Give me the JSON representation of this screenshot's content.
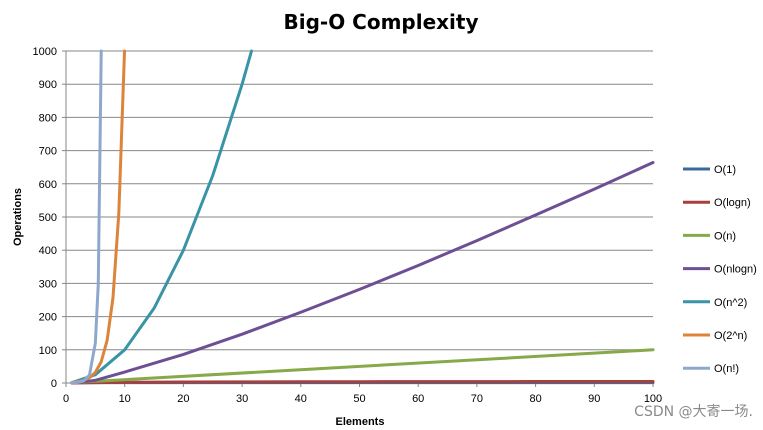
{
  "chart_data": {
    "type": "line",
    "title": "Big-O Complexity",
    "xlabel": "Elements",
    "ylabel": "Operations",
    "xlim": [
      0,
      100
    ],
    "ylim": [
      0,
      1000
    ],
    "x_ticks": [
      "0",
      "10",
      "20",
      "30",
      "40",
      "50",
      "60",
      "70",
      "80",
      "90",
      "100"
    ],
    "y_ticks": [
      "0",
      "100",
      "200",
      "300",
      "400",
      "500",
      "600",
      "700",
      "800",
      "900",
      "1000"
    ],
    "grid": "horizontal",
    "legend_position": "right",
    "series": [
      {
        "name": "O(1)",
        "color": "#3c6a98",
        "x": [
          1,
          100
        ],
        "y": [
          1,
          1
        ]
      },
      {
        "name": "O(logn)",
        "color": "#a83f3c",
        "x": [
          1,
          10,
          20,
          30,
          40,
          50,
          60,
          70,
          80,
          90,
          100
        ],
        "y": [
          0,
          2.3,
          3.0,
          3.4,
          3.7,
          3.9,
          4.1,
          4.2,
          4.4,
          4.5,
          4.6
        ]
      },
      {
        "name": "O(n)",
        "color": "#86a94a",
        "x": [
          1,
          100
        ],
        "y": [
          1,
          100
        ]
      },
      {
        "name": "O(nlogn)",
        "color": "#6e4f93",
        "x": [
          1,
          5,
          10,
          20,
          30,
          40,
          50,
          60,
          70,
          80,
          90,
          100
        ],
        "y": [
          0,
          8,
          33,
          86,
          147,
          213,
          282,
          354,
          429,
          506,
          584,
          664
        ]
      },
      {
        "name": "O(n^2)",
        "color": "#3894a6",
        "x": [
          1,
          5,
          10,
          15,
          20,
          25,
          30,
          31.6
        ],
        "y": [
          1,
          25,
          100,
          225,
          400,
          625,
          900,
          1000
        ]
      },
      {
        "name": "O(2^n)",
        "color": "#dc843a",
        "x": [
          1,
          2,
          3,
          4,
          5,
          6,
          7,
          8,
          9,
          9.97
        ],
        "y": [
          2,
          4,
          8,
          16,
          32,
          64,
          128,
          256,
          512,
          1000
        ]
      },
      {
        "name": "O(n!)",
        "color": "#8ea8cd",
        "x": [
          1,
          2,
          3,
          4,
          5,
          5.5,
          6
        ],
        "y": [
          1,
          2,
          6,
          24,
          120,
          300,
          1000
        ]
      }
    ]
  },
  "watermark": "CSDN @大寄一场."
}
